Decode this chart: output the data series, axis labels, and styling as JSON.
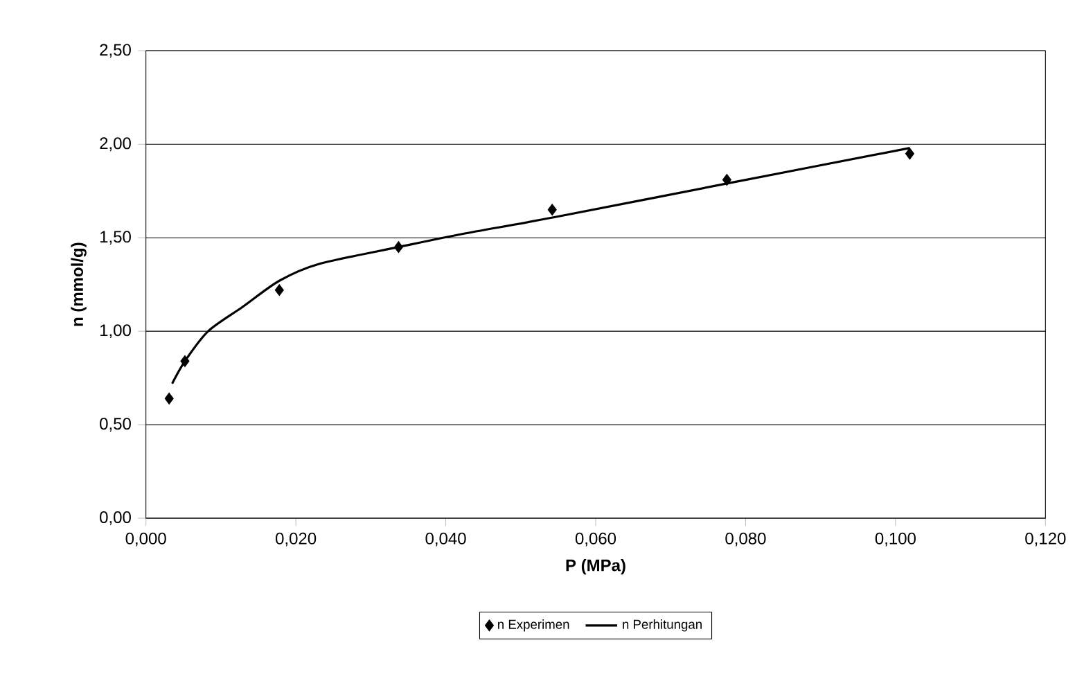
{
  "chart_data": {
    "type": "scatter",
    "xlabel": "P (MPa)",
    "ylabel": "n (mmol/g)",
    "xlim": [
      0,
      0.12
    ],
    "ylim": [
      0,
      2.5
    ],
    "xticks": [
      {
        "value": 0,
        "label": "0,000"
      },
      {
        "value": 0.02,
        "label": "0,020"
      },
      {
        "value": 0.04,
        "label": "0,040"
      },
      {
        "value": 0.06,
        "label": "0,060"
      },
      {
        "value": 0.08,
        "label": "0,080"
      },
      {
        "value": 0.1,
        "label": "0,100"
      },
      {
        "value": 0.12,
        "label": "0,120"
      }
    ],
    "yticks": [
      {
        "value": 0,
        "label": "0,00"
      },
      {
        "value": 0.5,
        "label": "0,50"
      },
      {
        "value": 1,
        "label": "1,00"
      },
      {
        "value": 1.5,
        "label": "1,50"
      },
      {
        "value": 2,
        "label": "2,00"
      },
      {
        "value": 2.5,
        "label": "2,50"
      }
    ],
    "grid": "y",
    "legend": "bottom",
    "series": [
      {
        "name": "n Experimen",
        "marker": "diamond",
        "color": "#000000",
        "x": [
          0.0031,
          0.0052,
          0.0178,
          0.0337,
          0.0542,
          0.0775,
          0.1019
        ],
        "values": [
          0.64,
          0.84,
          1.22,
          1.45,
          1.65,
          1.81,
          1.95
        ]
      },
      {
        "name": "n Perhitungan",
        "type": "line",
        "marker": "none",
        "line_style": "solid",
        "color": "#000000",
        "x": [
          0.0035,
          0.0052,
          0.0083,
          0.0129,
          0.0178,
          0.0231,
          0.0337,
          0.0422,
          0.0545,
          0.0775,
          0.1019
        ],
        "values": [
          0.72,
          0.84,
          1.0,
          1.13,
          1.27,
          1.36,
          1.45,
          1.52,
          1.61,
          1.79,
          1.98
        ]
      }
    ]
  }
}
